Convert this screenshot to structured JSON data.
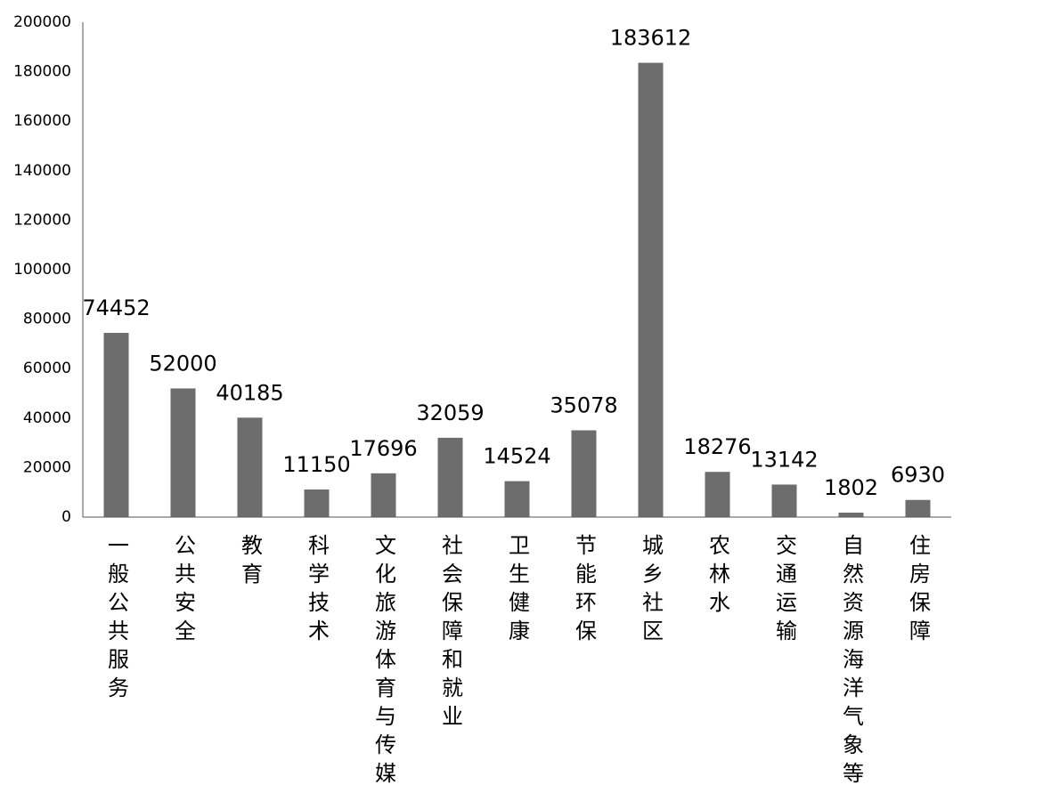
{
  "chart_data": {
    "type": "bar",
    "categories": [
      "一般公共服务",
      "公共安全",
      "教育",
      "科学技术",
      "文化旅游体育与传媒",
      "社会保障和就业",
      "卫生健康",
      "节能环保",
      "城乡社区",
      "农林水",
      "交通运输",
      "自然资源海洋气象等",
      "住房保障"
    ],
    "values": [
      74452,
      52000,
      40185,
      11150,
      17696,
      32059,
      14524,
      35078,
      183612,
      18276,
      13142,
      1802,
      6930
    ],
    "color": "#6d6d6d",
    "ylim": [
      0,
      200000
    ],
    "yticks": [
      0,
      20000,
      40000,
      60000,
      80000,
      100000,
      120000,
      140000,
      160000,
      180000,
      200000
    ],
    "grid": false
  }
}
